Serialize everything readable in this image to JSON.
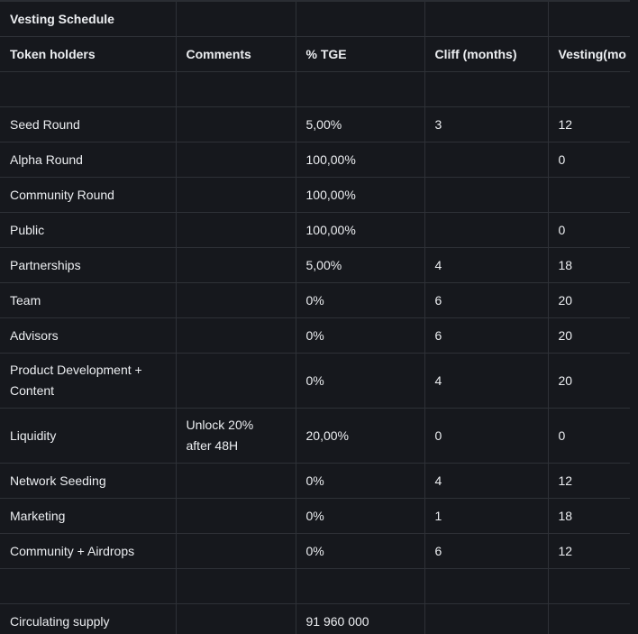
{
  "sheet": {
    "title": "Vesting Schedule",
    "columns": [
      "Token holders",
      "Comments",
      "% TGE",
      "Cliff (months)",
      "Vesting(mo"
    ],
    "rows": [
      {
        "holder": "",
        "comment": "",
        "tge": "",
        "cliff": "",
        "vesting": ""
      },
      {
        "holder": "Seed Round",
        "comment": "",
        "tge": "5,00%",
        "cliff": "3",
        "vesting": "12"
      },
      {
        "holder": "Alpha Round",
        "comment": "",
        "tge": "100,00%",
        "cliff": "",
        "vesting": "0"
      },
      {
        "holder": "Community Round",
        "comment": "",
        "tge": "100,00%",
        "cliff": "",
        "vesting": ""
      },
      {
        "holder": "Public",
        "comment": "",
        "tge": "100,00%",
        "cliff": "",
        "vesting": "0"
      },
      {
        "holder": "Partnerships",
        "comment": "",
        "tge": "5,00%",
        "cliff": "4",
        "vesting": "18"
      },
      {
        "holder": "Team",
        "comment": "",
        "tge": "0%",
        "cliff": "6",
        "vesting": "20"
      },
      {
        "holder": "Advisors",
        "comment": "",
        "tge": "0%",
        "cliff": "6",
        "vesting": "20"
      },
      {
        "holder": "Product Development + Content",
        "comment": "",
        "tge": "0%",
        "cliff": "4",
        "vesting": "20"
      },
      {
        "holder": "Liquidity",
        "comment": "Unlock 20% after 48H",
        "tge": "20,00%",
        "cliff": "0",
        "vesting": "0"
      },
      {
        "holder": "Network Seeding",
        "comment": "",
        "tge": "0%",
        "cliff": "4",
        "vesting": "12"
      },
      {
        "holder": "Marketing",
        "comment": "",
        "tge": "0%",
        "cliff": "1",
        "vesting": "18"
      },
      {
        "holder": "Community + Airdrops",
        "comment": "",
        "tge": "0%",
        "cliff": "6",
        "vesting": "12"
      },
      {
        "holder": "",
        "comment": "",
        "tge": "",
        "cliff": "",
        "vesting": ""
      },
      {
        "holder": "Circulating supply",
        "comment": "",
        "tge": "91 960 000",
        "cliff": "",
        "vesting": ""
      }
    ]
  },
  "colors": {
    "background": "#16181d",
    "gridline": "#2e3137",
    "text": "#eceef1"
  }
}
